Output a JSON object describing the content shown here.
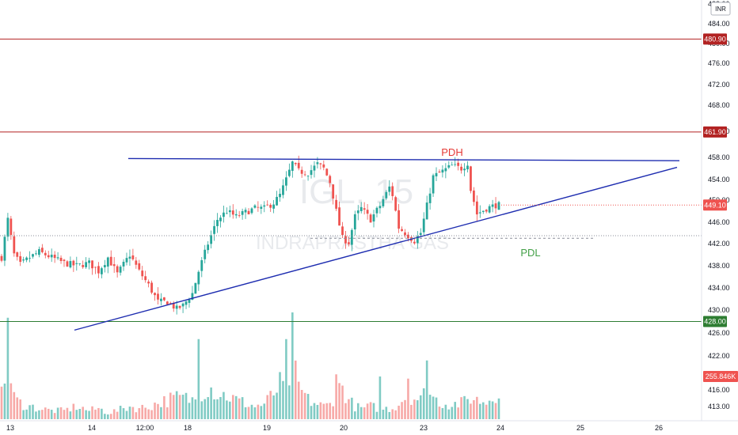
{
  "currency": "INR",
  "watermark": {
    "ticker": "IGL, 15",
    "name": "INDRAPRASTHA GAS"
  },
  "annotations": {
    "pdh": "PDH",
    "pdl": "PDL"
  },
  "colors": {
    "up": "#26a69a",
    "down": "#ef5350",
    "vol_up": "#80cbc4",
    "vol_down": "#f7a9a7",
    "trendline": "#1e2db0",
    "resistance_line": "#b22222",
    "support_line": "#2e7d32",
    "pdh_text": "#e53935",
    "pdl_text": "#43a047",
    "price_tag_red": "#ef5350"
  },
  "chart_data": {
    "type": "candlestick",
    "timeframe": "15",
    "y_axis": {
      "ticks": [
        "413.00",
        "416.00",
        "422.00",
        "426.00",
        "430.00",
        "434.00",
        "438.00",
        "442.00",
        "446.00",
        "450.00",
        "454.00",
        "458.00",
        "462.00",
        "468.00",
        "472.00",
        "476.00",
        "480.00",
        "484.00",
        "488.00"
      ],
      "range": [
        409.5,
        489
      ]
    },
    "x_axis": {
      "ticks": [
        "13",
        "14",
        "12:00",
        "18",
        "19",
        "20",
        "23",
        "24",
        "25",
        "26"
      ]
    },
    "horizontal_levels": [
      {
        "value": "480.90",
        "kind": "resistance"
      },
      {
        "value": "461.90",
        "kind": "resistance"
      },
      {
        "value": "428.00",
        "kind": "support"
      }
    ],
    "last_price": "449.10",
    "volume_label": "255.846K",
    "pdh_level": 457.6,
    "pdl_level": 443.0,
    "trendlines": [
      {
        "name": "upper",
        "from": [
          "14",
          457.8
        ],
        "to": [
          "26",
          457.4
        ]
      },
      {
        "name": "rising",
        "from": [
          "13",
          426.5
        ],
        "to": [
          "26",
          456.2
        ]
      }
    ],
    "close_path": [
      [
        0,
        439.5
      ],
      [
        2,
        446.5
      ],
      [
        4,
        440
      ],
      [
        6,
        438.2
      ],
      [
        9,
        439.5
      ],
      [
        12,
        440.5
      ],
      [
        16,
        439.5
      ],
      [
        20,
        438.5
      ],
      [
        24,
        438
      ],
      [
        28,
        438.5
      ],
      [
        31,
        437
      ],
      [
        34,
        439.5
      ],
      [
        37,
        436.5
      ],
      [
        41,
        440
      ],
      [
        44,
        437
      ],
      [
        47,
        434.5
      ],
      [
        50,
        431.5
      ],
      [
        53,
        431.5
      ],
      [
        56,
        430.2
      ],
      [
        58,
        430.8
      ],
      [
        61,
        433
      ],
      [
        63,
        437
      ],
      [
        66,
        442
      ],
      [
        69,
        446.5
      ],
      [
        72,
        448
      ],
      [
        75,
        447
      ],
      [
        78,
        447.8
      ],
      [
        81,
        448.5
      ],
      [
        84,
        448.5
      ],
      [
        87,
        449.5
      ],
      [
        89,
        451
      ],
      [
        91,
        454
      ],
      [
        93,
        457
      ],
      [
        95,
        455.5
      ],
      [
        98,
        455.2
      ],
      [
        101,
        456.8
      ],
      [
        103,
        456
      ],
      [
        105,
        453.5
      ],
      [
        107,
        448
      ],
      [
        109,
        443
      ],
      [
        111,
        442.2
      ],
      [
        113,
        447
      ],
      [
        115,
        448.5
      ],
      [
        118,
        446.5
      ],
      [
        121,
        449
      ],
      [
        124,
        452.5
      ],
      [
        125,
        451
      ],
      [
        127,
        445
      ],
      [
        130,
        443.5
      ],
      [
        132,
        442.5
      ],
      [
        134,
        444
      ],
      [
        136,
        449
      ],
      [
        138,
        454.5
      ],
      [
        141,
        455.5
      ],
      [
        144,
        456.5
      ],
      [
        147,
        456
      ],
      [
        149,
        457
      ],
      [
        150,
        452
      ],
      [
        152,
        447.5
      ],
      [
        155,
        448.5
      ],
      [
        158,
        449.1
      ]
    ],
    "volume_path": [
      [
        0,
        0.22
      ],
      [
        2,
        0.46
      ],
      [
        4,
        0.2
      ],
      [
        6,
        0.15
      ],
      [
        9,
        0.12
      ],
      [
        12,
        0.1
      ],
      [
        16,
        0.08
      ],
      [
        20,
        0.08
      ],
      [
        24,
        0.12
      ],
      [
        28,
        0.08
      ],
      [
        31,
        0.1
      ],
      [
        34,
        0.06
      ],
      [
        37,
        0.08
      ],
      [
        41,
        0.12
      ],
      [
        44,
        0.1
      ],
      [
        47,
        0.12
      ],
      [
        50,
        0.15
      ],
      [
        53,
        0.18
      ],
      [
        56,
        0.2
      ],
      [
        58,
        0.2
      ],
      [
        61,
        0.18
      ],
      [
        63,
        0.2
      ],
      [
        66,
        0.32
      ],
      [
        69,
        0.24
      ],
      [
        72,
        0.22
      ],
      [
        75,
        0.18
      ],
      [
        78,
        0.15
      ],
      [
        81,
        0.12
      ],
      [
        84,
        0.14
      ],
      [
        87,
        0.24
      ],
      [
        89,
        0.32
      ],
      [
        91,
        0.28
      ],
      [
        93,
        0.52
      ],
      [
        95,
        0.3
      ],
      [
        98,
        0.18
      ],
      [
        101,
        0.14
      ],
      [
        103,
        0.12
      ],
      [
        105,
        0.14
      ],
      [
        107,
        0.26
      ],
      [
        109,
        0.3
      ],
      [
        111,
        0.18
      ],
      [
        113,
        0.12
      ],
      [
        115,
        0.1
      ],
      [
        118,
        0.12
      ],
      [
        121,
        0.1
      ],
      [
        124,
        0.1
      ],
      [
        125,
        0.1
      ],
      [
        127,
        0.15
      ],
      [
        130,
        0.24
      ],
      [
        132,
        0.2
      ],
      [
        134,
        0.18
      ],
      [
        136,
        0.28
      ],
      [
        138,
        0.2
      ],
      [
        141,
        0.15
      ],
      [
        144,
        0.14
      ],
      [
        147,
        0.15
      ],
      [
        149,
        0.18
      ],
      [
        150,
        0.2
      ],
      [
        152,
        0.18
      ],
      [
        155,
        0.16
      ],
      [
        158,
        0.25
      ]
    ],
    "volume_spikes": [
      [
        2,
        0.95
      ],
      [
        63,
        0.75
      ],
      [
        91,
        0.75
      ],
      [
        93,
        1.0
      ],
      [
        107,
        0.42
      ],
      [
        121,
        0.4
      ],
      [
        130,
        0.38
      ],
      [
        136,
        0.55
      ]
    ]
  }
}
